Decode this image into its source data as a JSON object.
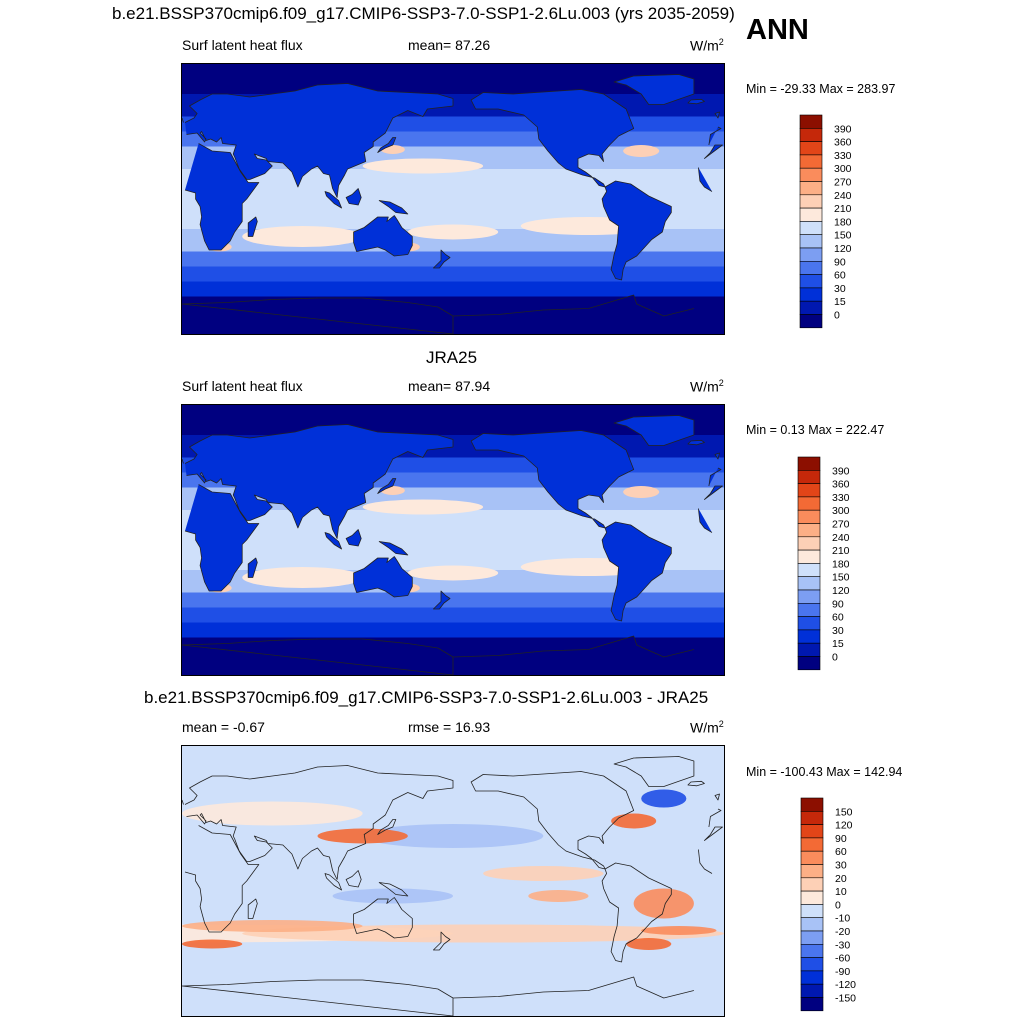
{
  "season": "ANN",
  "colors": {
    "abs_scale": [
      "#000080",
      "#0018b0",
      "#0030d8",
      "#1f4fe6",
      "#4a75ee",
      "#7c9ef2",
      "#a8c2f6",
      "#cfe0fa",
      "#fde9dc",
      "#fdd0b6",
      "#fcaf86",
      "#fa8c5c",
      "#f36a35",
      "#e24518",
      "#c5280a",
      "#8c0f00"
    ],
    "diff_scale": [
      "#000080",
      "#0018b0",
      "#0030d8",
      "#1f4fe6",
      "#4a75ee",
      "#7c9ef2",
      "#a8c2f6",
      "#cfe0fa",
      "#fde9dc",
      "#fdd0b6",
      "#fcaf86",
      "#fa8c5c",
      "#f36a35",
      "#e24518",
      "#c5280a",
      "#8c0f00"
    ],
    "land_line": "#222222"
  },
  "panels": {
    "top": {
      "title": "b.e21.BSSP370cmip6.f09_g17.CMIP6-SSP3-7.0-SSP1-2.6Lu.003 (yrs 2035-2059)",
      "variable": "Surf latent heat flux",
      "stat": "mean=  87.26",
      "units": "W/m",
      "units_exp": "2",
      "minmax": "Min = -29.33 Max = 283.97"
    },
    "middle": {
      "title": "JRA25",
      "variable": "Surf latent heat flux",
      "stat": "mean=  87.94",
      "units": "W/m",
      "units_exp": "2",
      "minmax": "Min =   0.13 Max = 222.47"
    },
    "bottom": {
      "title": "b.e21.BSSP370cmip6.f09_g17.CMIP6-SSP3-7.0-SSP1-2.6Lu.003 - JRA25",
      "stat_left": "mean =  -0.67",
      "stat_mid": "rmse =  16.93",
      "units": "W/m",
      "units_exp": "2",
      "minmax": "Min = -100.43 Max = 142.94"
    }
  },
  "chart_data": [
    {
      "type": "heatmap",
      "title": "b.e21.BSSP370cmip6.f09_g17.CMIP6-SSP3-7.0-SSP1-2.6Lu.003 (yrs 2035-2059)",
      "variable": "Surf latent heat flux",
      "units": "W/m^2",
      "mean": 87.26,
      "min": -29.33,
      "max": 283.97,
      "colorbar_levels": [
        "390",
        "360",
        "330",
        "300",
        "270",
        "240",
        "210",
        "180",
        "150",
        "120",
        "90",
        "60",
        "30",
        "15",
        "0"
      ]
    },
    {
      "type": "heatmap",
      "title": "JRA25",
      "variable": "Surf latent heat flux",
      "units": "W/m^2",
      "mean": 87.94,
      "min": 0.13,
      "max": 222.47,
      "colorbar_levels": [
        "390",
        "360",
        "330",
        "300",
        "270",
        "240",
        "210",
        "180",
        "150",
        "120",
        "90",
        "60",
        "30",
        "15",
        "0"
      ]
    },
    {
      "type": "heatmap",
      "title": "b.e21.BSSP370cmip6.f09_g17.CMIP6-SSP3-7.0-SSP1-2.6Lu.003 - JRA25",
      "units": "W/m^2",
      "mean": -0.67,
      "rmse": 16.93,
      "min": -100.43,
      "max": 142.94,
      "colorbar_levels": [
        "150",
        "120",
        "90",
        "60",
        "30",
        "20",
        "10",
        "0",
        "-10",
        "-20",
        "-30",
        "-60",
        "-90",
        "-120",
        "-150"
      ]
    }
  ]
}
